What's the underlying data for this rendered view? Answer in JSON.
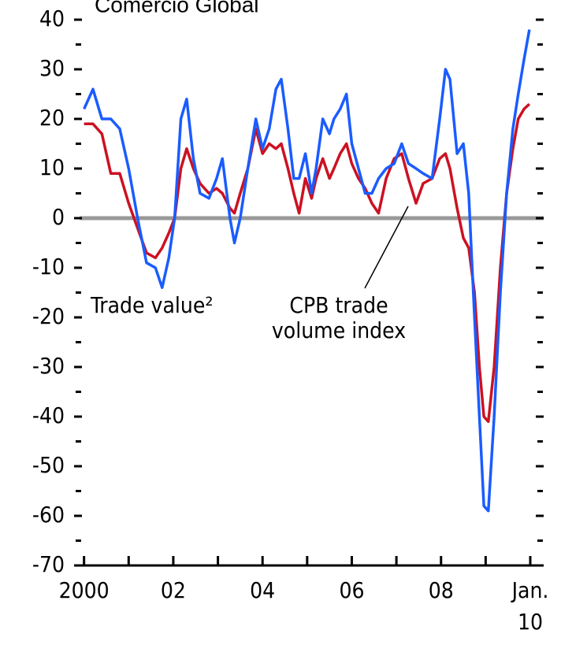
{
  "chart_data": {
    "type": "line",
    "title": "Comercio Global",
    "x": [
      2000.0,
      2000.2,
      2000.4,
      2000.6,
      2000.8,
      2001.0,
      2001.2,
      2001.4,
      2001.6,
      2001.75,
      2001.9,
      2002.03,
      2002.17,
      2002.3,
      2002.45,
      2002.6,
      2002.8,
      2002.97,
      2003.1,
      2003.27,
      2003.37,
      2003.5,
      2003.67,
      2003.85,
      2004.0,
      2004.15,
      2004.3,
      2004.42,
      2004.57,
      2004.7,
      2004.82,
      2004.96,
      2005.1,
      2005.2,
      2005.35,
      2005.5,
      2005.6,
      2005.74,
      2005.88,
      2006.0,
      2006.15,
      2006.3,
      2006.45,
      2006.6,
      2006.77,
      2006.95,
      2007.12,
      2007.27,
      2007.44,
      2007.6,
      2007.8,
      2007.97,
      2008.1,
      2008.2,
      2008.36,
      2008.5,
      2008.62,
      2008.75,
      2008.86,
      2008.96,
      2009.06,
      2009.19,
      2009.33,
      2009.47,
      2009.61,
      2009.73,
      2009.86,
      2009.98
    ],
    "series": [
      {
        "name": "Trade value²",
        "color": "#1a5cff",
        "values": [
          22,
          26,
          20,
          20,
          18,
          10,
          0,
          -9,
          -10,
          -14,
          -8,
          0,
          20,
          24,
          12,
          5,
          4,
          8,
          12,
          0,
          -5,
          0,
          10,
          20,
          14,
          18,
          26,
          28,
          18,
          8,
          8,
          13,
          5,
          10,
          20,
          17,
          20,
          22,
          25,
          15,
          10,
          5,
          5,
          8,
          10,
          11,
          15,
          11,
          10,
          9,
          8,
          20,
          30,
          28,
          13,
          15,
          5,
          -20,
          -40,
          -58,
          -59,
          -40,
          -15,
          5,
          18,
          25,
          32,
          38
        ]
      },
      {
        "name": "CPB trade volume index",
        "color": "#cc1122",
        "values": [
          19,
          19,
          17,
          9,
          9,
          3,
          -2,
          -7,
          -8,
          -6,
          -3,
          0,
          10,
          14,
          10,
          7,
          5,
          6,
          5,
          2,
          1,
          5,
          10,
          18,
          13,
          15,
          14,
          15,
          10,
          5,
          1,
          8,
          4,
          8,
          12,
          8,
          10,
          13,
          15,
          11,
          8,
          6,
          3,
          1,
          8,
          12,
          13,
          8,
          3,
          7,
          8,
          12,
          13,
          10,
          2,
          -4,
          -6,
          -15,
          -30,
          -40,
          -41,
          -30,
          -10,
          5,
          14,
          20,
          22,
          23
        ]
      }
    ],
    "xlim": [
      1999.9,
      2010.3
    ],
    "xticks": [
      2000,
      {
        "value": 2002,
        "label": "02"
      },
      {
        "value": 2004,
        "label": "04"
      },
      {
        "value": 2006,
        "label": "06"
      },
      {
        "value": 2008,
        "label": "08"
      },
      {
        "value": 2010,
        "label": "Jan. 10"
      }
    ],
    "xminorticks": [
      2001,
      2003,
      2005,
      2007,
      2009
    ],
    "ylim": [
      -70,
      40
    ],
    "yticks": [
      -70,
      -60,
      -50,
      -40,
      -30,
      -20,
      -10,
      0,
      10,
      20,
      30,
      40
    ],
    "yminorticks": [
      -65,
      -55,
      -45,
      -35,
      -25,
      -15,
      -5,
      5,
      15,
      25,
      35
    ],
    "zero_line": true
  }
}
